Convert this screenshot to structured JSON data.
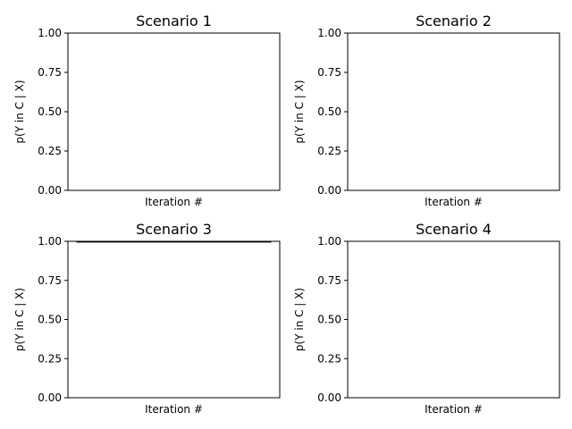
{
  "chart_data": [
    {
      "type": "line",
      "title": "Scenario 1",
      "xlabel": "Iteration #",
      "ylabel": "p(Y in C | X)",
      "ylim": [
        0,
        1
      ],
      "yticks": [
        "0.00",
        "0.25",
        "0.50",
        "0.75",
        "1.00"
      ],
      "xlim": [
        0,
        1
      ],
      "series": [
        {
          "x": [
            0.04,
            0.96
          ],
          "values": [
            1.0,
            1.0
          ],
          "color": "#000000"
        }
      ],
      "grid": false
    },
    {
      "type": "line",
      "title": "Scenario 2",
      "xlabel": "Iteration #",
      "ylabel": "p(Y in C | X)",
      "ylim": [
        0,
        1
      ],
      "yticks": [
        "0.00",
        "0.25",
        "0.50",
        "0.75",
        "1.00"
      ],
      "xlim": [
        0,
        1
      ],
      "series": [
        {
          "x": [
            0.04,
            0.96
          ],
          "values": [
            1.0,
            1.0
          ],
          "color": "#000000"
        }
      ],
      "grid": false
    },
    {
      "type": "line",
      "title": "Scenario 3",
      "xlabel": "Iteration #",
      "ylabel": "p(Y in C | X)",
      "ylim": [
        0,
        1
      ],
      "yticks": [
        "0.00",
        "0.25",
        "0.50",
        "0.75",
        "1.00"
      ],
      "xlim": [
        0,
        1
      ],
      "series": [
        {
          "x": [
            0.04,
            0.96
          ],
          "values": [
            0.995,
            0.995
          ],
          "color": "#000000"
        }
      ],
      "grid": false
    },
    {
      "type": "line",
      "title": "Scenario 4",
      "xlabel": "Iteration #",
      "ylabel": "p(Y in C | X)",
      "ylim": [
        0,
        1
      ],
      "yticks": [
        "0.00",
        "0.25",
        "0.50",
        "0.75",
        "1.00"
      ],
      "xlim": [
        0,
        1
      ],
      "series": [
        {
          "x": [
            0.04,
            0.96
          ],
          "values": [
            1.0,
            1.0
          ],
          "color": "#000000"
        }
      ],
      "grid": false
    }
  ]
}
